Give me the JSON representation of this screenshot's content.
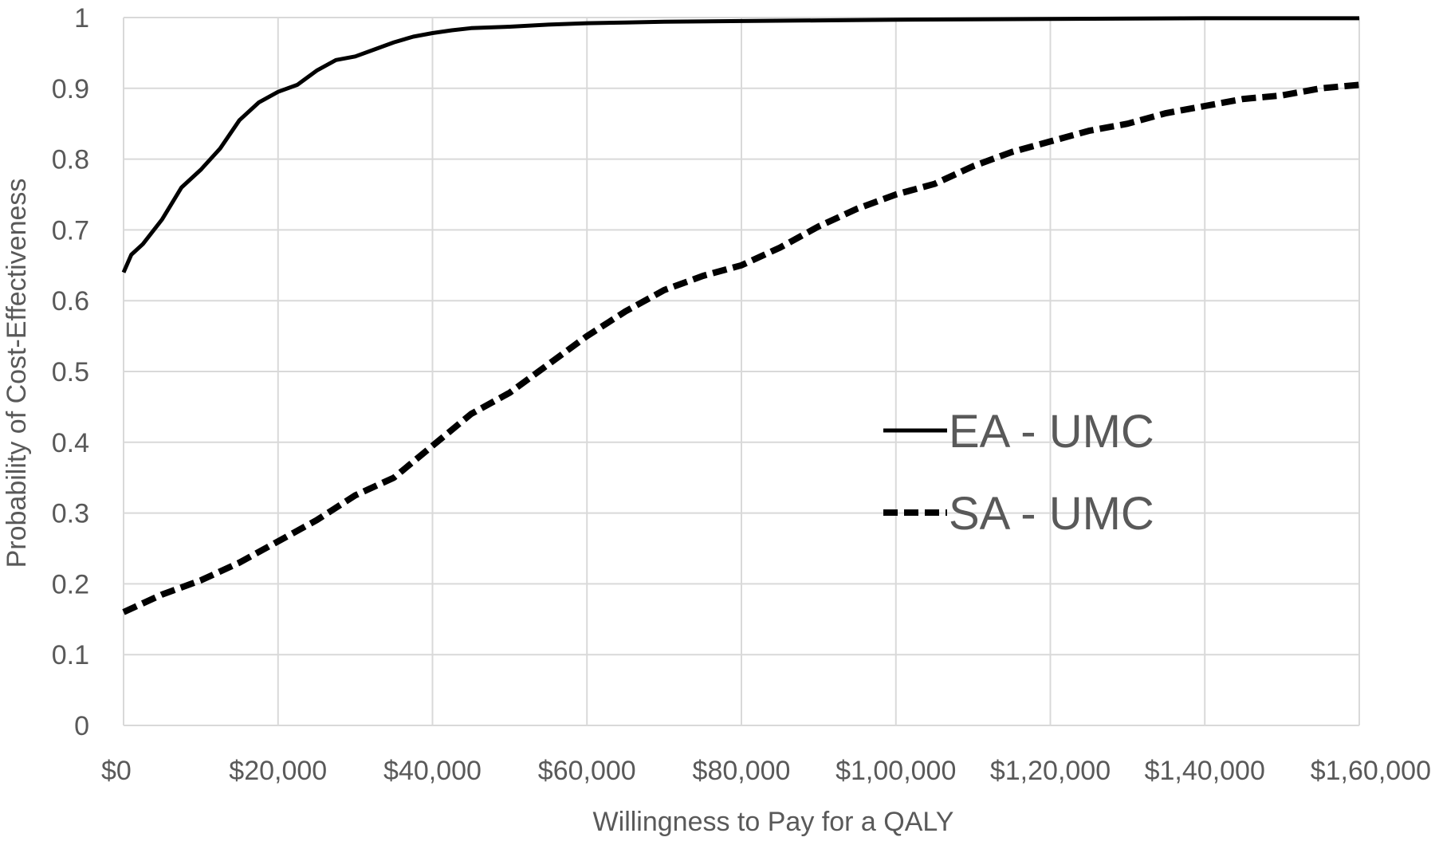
{
  "chart_data": {
    "type": "line",
    "title": "",
    "xlabel": "Willingness to Pay for a QALY",
    "ylabel": "Probability of Cost-Effectiveness",
    "xlim": [
      0,
      160000
    ],
    "ylim": [
      0,
      1
    ],
    "grid": true,
    "legend_position": "right",
    "x_ticks": [
      0,
      20000,
      40000,
      60000,
      80000,
      100000,
      120000,
      140000,
      160000
    ],
    "x_tick_labels": [
      "$0",
      "$20,000",
      "$40,000",
      "$60,000",
      "$80,000",
      "$1,00,000",
      "$1,20,000",
      "$1,40,000",
      "$1,60,000"
    ],
    "y_ticks": [
      0,
      0.1,
      0.2,
      0.3,
      0.4,
      0.5,
      0.6,
      0.7,
      0.8,
      0.9,
      1
    ],
    "y_tick_labels": [
      "0",
      "0.1",
      "0.2",
      "0.3",
      "0.4",
      "0.5",
      "0.6",
      "0.7",
      "0.8",
      "0.9",
      "1"
    ],
    "series": [
      {
        "name": "EA - UMC",
        "style": "solid",
        "color": "#000000",
        "x": [
          0,
          1000,
          2500,
          5000,
          7500,
          10000,
          12500,
          15000,
          17500,
          20000,
          22500,
          25000,
          27500,
          30000,
          32500,
          35000,
          37500,
          40000,
          42500,
          45000,
          50000,
          55000,
          60000,
          65000,
          70000,
          80000,
          90000,
          100000,
          120000,
          140000,
          160000
        ],
        "values": [
          0.64,
          0.665,
          0.68,
          0.715,
          0.76,
          0.785,
          0.815,
          0.855,
          0.88,
          0.895,
          0.905,
          0.925,
          0.94,
          0.945,
          0.955,
          0.965,
          0.973,
          0.978,
          0.982,
          0.985,
          0.987,
          0.99,
          0.992,
          0.993,
          0.994,
          0.995,
          0.996,
          0.997,
          0.998,
          0.999,
          0.999
        ]
      },
      {
        "name": "SA - UMC",
        "style": "dashed",
        "color": "#000000",
        "x": [
          0,
          5000,
          10000,
          15000,
          20000,
          25000,
          30000,
          35000,
          40000,
          45000,
          50000,
          55000,
          60000,
          65000,
          70000,
          75000,
          80000,
          85000,
          90000,
          95000,
          100000,
          105000,
          110000,
          115000,
          120000,
          125000,
          130000,
          135000,
          140000,
          145000,
          150000,
          155000,
          160000
        ],
        "values": [
          0.16,
          0.185,
          0.205,
          0.23,
          0.26,
          0.29,
          0.325,
          0.35,
          0.395,
          0.44,
          0.47,
          0.51,
          0.55,
          0.585,
          0.615,
          0.635,
          0.65,
          0.675,
          0.705,
          0.73,
          0.75,
          0.765,
          0.79,
          0.81,
          0.825,
          0.84,
          0.85,
          0.865,
          0.875,
          0.885,
          0.89,
          0.9,
          0.905
        ]
      }
    ]
  }
}
